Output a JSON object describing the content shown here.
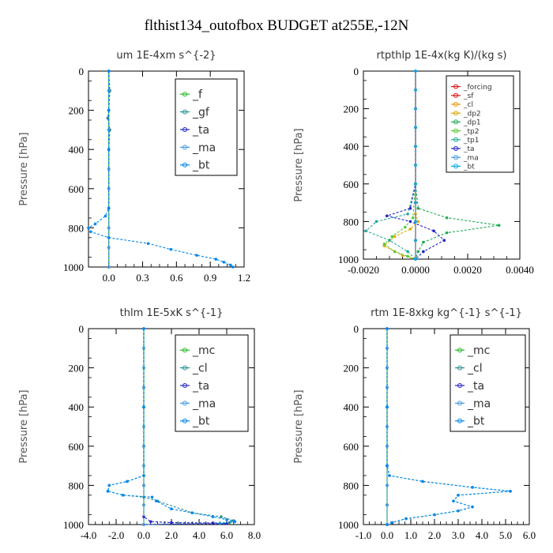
{
  "title": "flthist134_outofbox  BUDGET at255E,-12N",
  "chart_data": [
    {
      "type": "line",
      "title": "um   1E-4xm s^{-2}",
      "ylabel": "Pressure [hPa]",
      "xlim": [
        -0.18,
        1.2
      ],
      "ylim": [
        0,
        1000
      ],
      "x_ticks": [
        "0.0",
        "0.3",
        "0.6",
        "0.9",
        "1.2"
      ],
      "y_ticks": [
        "0",
        "200",
        "400",
        "600",
        "800",
        "1000"
      ],
      "grid": false,
      "legend_position": "top-right",
      "series": [
        {
          "name": "_f",
          "color": "#22bb22",
          "x": [
            0,
            0,
            0,
            0,
            0,
            0,
            0,
            0,
            0,
            0,
            0
          ],
          "y": [
            0,
            100,
            200,
            300,
            400,
            500,
            600,
            700,
            800,
            900,
            1000
          ]
        },
        {
          "name": "_gf",
          "color": "#2a8f8f",
          "x": [
            0,
            0.01,
            0,
            -0.01,
            0.01,
            0,
            0,
            0,
            0,
            0,
            0
          ],
          "y": [
            0,
            100,
            200,
            240,
            300,
            400,
            500,
            600,
            700,
            850,
            1000
          ]
        },
        {
          "name": "_ta",
          "color": "#2222cc",
          "x": [
            0,
            0,
            0,
            0,
            0,
            0,
            0,
            0,
            0,
            0,
            0
          ],
          "y": [
            0,
            100,
            200,
            300,
            400,
            500,
            600,
            700,
            800,
            900,
            1000
          ]
        },
        {
          "name": "_ma",
          "color": "#4499dd",
          "x": [
            0,
            0,
            0,
            0,
            0,
            0,
            0,
            0,
            0,
            0,
            0
          ],
          "y": [
            0,
            100,
            200,
            300,
            400,
            500,
            600,
            700,
            800,
            900,
            1000
          ]
        },
        {
          "name": "_bt",
          "color": "#0088ee",
          "x": [
            0,
            0,
            0,
            0,
            -0.03,
            -0.12,
            -0.18,
            -0.16,
            0,
            0.35,
            0.55,
            0.78,
            0.95,
            1.02,
            1.08,
            1.1
          ],
          "y": [
            0,
            200,
            400,
            700,
            740,
            780,
            800,
            820,
            850,
            880,
            910,
            940,
            960,
            975,
            990,
            1000
          ]
        }
      ]
    },
    {
      "type": "line",
      "title": "rtpthlp   1E-4x(kg K)/(kg s)",
      "ylabel": "Pressure [hPa]",
      "xlim": [
        -0.002,
        0.004
      ],
      "ylim": [
        0,
        1000
      ],
      "x_ticks": [
        "-0.0020",
        "0.0000",
        "0.0020",
        "0.0040"
      ],
      "y_ticks": [
        "0",
        "200",
        "400",
        "600",
        "800",
        "1000"
      ],
      "grid": false,
      "legend_position": "top-right",
      "series": [
        {
          "name": "_forcing",
          "color": "#dd1111",
          "x": [
            0,
            0,
            0,
            0,
            0,
            0,
            0,
            0,
            0,
            0,
            0
          ],
          "y": [
            0,
            100,
            200,
            300,
            400,
            500,
            600,
            700,
            800,
            900,
            1000
          ]
        },
        {
          "name": "_sf",
          "color": "#dd1111",
          "x": [
            0,
            0,
            0,
            0,
            0,
            0,
            0,
            0,
            0,
            0,
            0
          ],
          "y": [
            0,
            100,
            200,
            300,
            400,
            500,
            600,
            700,
            800,
            900,
            1000
          ]
        },
        {
          "name": "_cl",
          "color": "#ee9900",
          "x": [
            0,
            0,
            0,
            0,
            0,
            0,
            0,
            0,
            0,
            0,
            0
          ],
          "y": [
            0,
            100,
            200,
            300,
            400,
            500,
            600,
            700,
            800,
            900,
            1000
          ]
        },
        {
          "name": "_dp2",
          "color": "#ddaa00",
          "x": [
            0,
            0,
            0,
            0,
            0.0001,
            -0.0002,
            -0.0008,
            -0.0012,
            -0.0005,
            0
          ],
          "y": [
            0,
            300,
            600,
            760,
            800,
            840,
            880,
            930,
            980,
            1000
          ]
        },
        {
          "name": "_dp1",
          "color": "#22aa55",
          "x": [
            0,
            0,
            0,
            0.0001,
            0.0012,
            0.0032,
            0.0012,
            0.0003,
            0.0001,
            0
          ],
          "y": [
            0,
            300,
            600,
            730,
            780,
            820,
            860,
            910,
            960,
            1000
          ]
        },
        {
          "name": "_tp2",
          "color": "#55cc33",
          "x": [
            0,
            0,
            0,
            -0.0001,
            -0.0004,
            -0.0009,
            -0.0012,
            -0.0008,
            -0.0003,
            0
          ],
          "y": [
            0,
            300,
            600,
            780,
            830,
            880,
            920,
            960,
            985,
            1000
          ]
        },
        {
          "name": "_tp1",
          "color": "#22aa99",
          "x": [
            0,
            0,
            0,
            -0.0003,
            -0.0015,
            -0.0019,
            -0.001,
            -0.0003,
            0
          ],
          "y": [
            0,
            300,
            600,
            760,
            800,
            850,
            900,
            960,
            1000
          ]
        },
        {
          "name": "_ta",
          "color": "#2222cc",
          "x": [
            0,
            0,
            0,
            -0.0002,
            -0.0011,
            -0.0002,
            0.0007,
            0.0011,
            0.0003,
            0
          ],
          "y": [
            0,
            300,
            600,
            730,
            770,
            800,
            850,
            900,
            960,
            1000
          ]
        },
        {
          "name": "_ma",
          "color": "#4499dd",
          "x": [
            0,
            0,
            0,
            0,
            0,
            0,
            0,
            0,
            0,
            0,
            0
          ],
          "y": [
            0,
            100,
            200,
            300,
            400,
            500,
            600,
            700,
            800,
            900,
            1000
          ]
        },
        {
          "name": "_bt",
          "color": "#00aaee",
          "x": [
            0,
            0,
            0,
            0,
            0,
            0,
            0,
            0,
            0,
            0,
            0
          ],
          "y": [
            0,
            100,
            200,
            300,
            400,
            500,
            600,
            700,
            800,
            900,
            1000
          ]
        }
      ]
    },
    {
      "type": "line",
      "title": "thlm   1E-5xK  s^{-1}",
      "ylabel": "Pressure [hPa]",
      "xlim": [
        -4.0,
        8.0
      ],
      "ylim": [
        0,
        1000
      ],
      "x_ticks": [
        "-4.0",
        "-2.0",
        "0.0",
        "2.0",
        "4.0",
        "6.0",
        "8.0"
      ],
      "y_ticks": [
        "0",
        "200",
        "400",
        "600",
        "800",
        "1000"
      ],
      "grid": false,
      "legend_position": "top-right",
      "series": [
        {
          "name": "_mc",
          "color": "#22bb22",
          "x": [
            0,
            0,
            0,
            0,
            0,
            0,
            0,
            0,
            0,
            0,
            0
          ],
          "y": [
            0,
            100,
            200,
            300,
            400,
            500,
            600,
            700,
            800,
            900,
            1000
          ]
        },
        {
          "name": "_cl",
          "color": "#2a8f8f",
          "x": [
            0,
            0,
            0,
            -1.2,
            -2.5,
            -2.6,
            -1.5,
            0,
            1.0,
            3.5,
            5.6,
            6.5,
            6.2,
            0
          ],
          "y": [
            0,
            400,
            750,
            780,
            800,
            830,
            850,
            860,
            880,
            940,
            960,
            980,
            990,
            1000
          ]
        },
        {
          "name": "_ta",
          "color": "#2222cc",
          "x": [
            0,
            0,
            0,
            0,
            0,
            0.5,
            2.0,
            5.0,
            6.0,
            0
          ],
          "y": [
            0,
            300,
            600,
            800,
            960,
            985,
            990,
            992,
            995,
            1000
          ]
        },
        {
          "name": "_ma",
          "color": "#4499dd",
          "x": [
            0,
            0,
            0,
            0,
            0,
            0,
            0,
            0,
            0,
            0,
            0
          ],
          "y": [
            0,
            100,
            200,
            300,
            400,
            500,
            600,
            700,
            800,
            900,
            1000
          ]
        },
        {
          "name": "_bt",
          "color": "#0088ee",
          "x": [
            0,
            0,
            0,
            -1.2,
            -2.5,
            -2.6,
            -1.5,
            0.6,
            0.9,
            2.0,
            3.5,
            5.0,
            6.0,
            6.6,
            5.5
          ],
          "y": [
            0,
            400,
            750,
            780,
            800,
            830,
            850,
            860,
            880,
            920,
            940,
            960,
            975,
            985,
            995
          ]
        }
      ]
    },
    {
      "type": "line",
      "title": "rtm   1E-8xkg kg^{-1} s^{-1}",
      "ylabel": "Pressure [hPa]",
      "xlim": [
        -1.0,
        6.0
      ],
      "ylim": [
        0,
        1000
      ],
      "x_ticks": [
        "-1.0",
        "0.0",
        "1.0",
        "2.0",
        "3.0",
        "4.0",
        "5.0",
        "6.0"
      ],
      "y_ticks": [
        "0",
        "200",
        "400",
        "600",
        "800",
        "1000"
      ],
      "grid": false,
      "legend_position": "top-right",
      "series": [
        {
          "name": "_mc",
          "color": "#22bb22",
          "x": [
            0,
            0,
            0,
            0,
            0,
            0,
            0,
            0,
            0,
            0,
            0
          ],
          "y": [
            0,
            100,
            200,
            300,
            400,
            500,
            600,
            700,
            800,
            900,
            1000
          ]
        },
        {
          "name": "_cl",
          "color": "#2a8f8f",
          "x": [
            0,
            0,
            0,
            0.1,
            1.5,
            3.6,
            5.2,
            3.0,
            2.8,
            3.6,
            3.0,
            2.0,
            0.8,
            0.2,
            0
          ],
          "y": [
            0,
            400,
            700,
            750,
            780,
            810,
            830,
            850,
            880,
            910,
            930,
            950,
            970,
            990,
            1000
          ]
        },
        {
          "name": "_ta",
          "color": "#2222cc",
          "x": [
            0,
            0,
            0,
            0,
            0,
            0,
            0,
            0,
            0,
            0,
            0
          ],
          "y": [
            0,
            100,
            200,
            300,
            400,
            500,
            600,
            700,
            800,
            900,
            1000
          ]
        },
        {
          "name": "_ma",
          "color": "#4499dd",
          "x": [
            0,
            0,
            0,
            0,
            0,
            0,
            0,
            0,
            0,
            0,
            0
          ],
          "y": [
            0,
            100,
            200,
            300,
            400,
            500,
            600,
            700,
            800,
            900,
            1000
          ]
        },
        {
          "name": "_bt",
          "color": "#0088ee",
          "x": [
            0,
            0,
            0,
            0.1,
            1.5,
            3.6,
            5.2,
            3.0,
            2.8,
            3.6,
            3.0,
            2.0,
            0.8,
            0.2,
            0
          ],
          "y": [
            0,
            400,
            700,
            750,
            780,
            810,
            830,
            850,
            880,
            910,
            930,
            950,
            970,
            990,
            1000
          ]
        }
      ]
    }
  ]
}
